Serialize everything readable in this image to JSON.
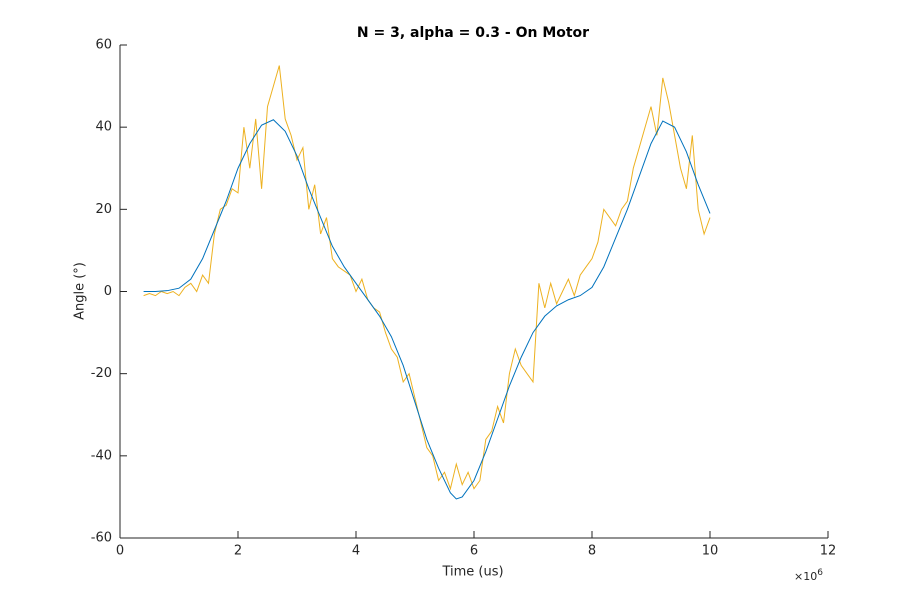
{
  "chart_data": {
    "type": "line",
    "title": "N = 3, alpha = 0.3 - On Motor",
    "xlabel": "Time (us)",
    "ylabel": "Angle (°)",
    "x_multiplier": {
      "base": "×10",
      "exponent": "6"
    },
    "xlim": [
      0,
      12
    ],
    "xticks": [
      0,
      2,
      4,
      6,
      8,
      10,
      12
    ],
    "ylim": [
      -60,
      60
    ],
    "yticks": [
      -60,
      -40,
      -20,
      0,
      20,
      40,
      60
    ],
    "series": [
      {
        "color": "#EDB120",
        "x": [
          0.4,
          0.5,
          0.6,
          0.7,
          0.8,
          0.9,
          1.0,
          1.1,
          1.2,
          1.3,
          1.4,
          1.5,
          1.6,
          1.7,
          1.8,
          1.9,
          2.0,
          2.1,
          2.2,
          2.3,
          2.4,
          2.5,
          2.6,
          2.7,
          2.8,
          2.9,
          3.0,
          3.1,
          3.2,
          3.3,
          3.4,
          3.5,
          3.6,
          3.7,
          3.8,
          3.9,
          4.0,
          4.1,
          4.2,
          4.3,
          4.4,
          4.5,
          4.6,
          4.7,
          4.8,
          4.9,
          5.0,
          5.1,
          5.2,
          5.3,
          5.4,
          5.5,
          5.6,
          5.7,
          5.8,
          5.9,
          6.0,
          6.1,
          6.2,
          6.3,
          6.4,
          6.5,
          6.6,
          6.7,
          6.8,
          6.9,
          7.0,
          7.1,
          7.2,
          7.3,
          7.4,
          7.5,
          7.6,
          7.7,
          7.8,
          7.9,
          8.0,
          8.1,
          8.2,
          8.3,
          8.4,
          8.5,
          8.6,
          8.7,
          8.8,
          8.9,
          9.0,
          9.1,
          9.2,
          9.3,
          9.4,
          9.5,
          9.6,
          9.7,
          9.8,
          9.9,
          10.0
        ],
        "values": [
          -1,
          -0.5,
          -1,
          0,
          -0.5,
          0,
          -1,
          1,
          2,
          0,
          4,
          2,
          14,
          20,
          21,
          25,
          24,
          40,
          30,
          42,
          25,
          45,
          50,
          55,
          42,
          38,
          32,
          35,
          20,
          26,
          14,
          18,
          8,
          6,
          5,
          4,
          0,
          3,
          -2,
          -4,
          -5,
          -10,
          -14,
          -16,
          -22,
          -20,
          -26,
          -32,
          -38,
          -40,
          -46,
          -44,
          -48,
          -42,
          -47,
          -44,
          -48,
          -46,
          -36,
          -34,
          -28,
          -32,
          -20,
          -14,
          -18,
          -20,
          -22,
          2,
          -4,
          2,
          -3,
          0,
          3,
          -1,
          4,
          6,
          8,
          12,
          20,
          18,
          16,
          20,
          22,
          30,
          35,
          40,
          45,
          38,
          52,
          46,
          38,
          30,
          25,
          38,
          20,
          14,
          18
        ]
      },
      {
        "color": "#0072BD",
        "x": [
          0.4,
          0.6,
          0.8,
          1.0,
          1.2,
          1.4,
          1.6,
          1.8,
          2.0,
          2.2,
          2.4,
          2.6,
          2.8,
          3.0,
          3.2,
          3.4,
          3.6,
          3.8,
          4.0,
          4.2,
          4.4,
          4.6,
          4.8,
          5.0,
          5.2,
          5.4,
          5.6,
          5.7,
          5.8,
          6.0,
          6.2,
          6.4,
          6.6,
          6.8,
          7.0,
          7.2,
          7.4,
          7.6,
          7.8,
          8.0,
          8.2,
          8.4,
          8.6,
          8.8,
          9.0,
          9.2,
          9.4,
          9.6,
          9.8,
          10.0
        ],
        "values": [
          0,
          0,
          0.2,
          0.8,
          3,
          8,
          15,
          22,
          30,
          36,
          40.5,
          41.8,
          39,
          33,
          25,
          18,
          11,
          6,
          2,
          -2,
          -6,
          -11,
          -18,
          -27,
          -36,
          -43,
          -49,
          -50.5,
          -50,
          -46,
          -39,
          -31,
          -23,
          -16,
          -10,
          -6,
          -3.5,
          -2,
          -1,
          1,
          6,
          13,
          20,
          28,
          36,
          41.5,
          40,
          34,
          26,
          19
        ]
      }
    ]
  }
}
